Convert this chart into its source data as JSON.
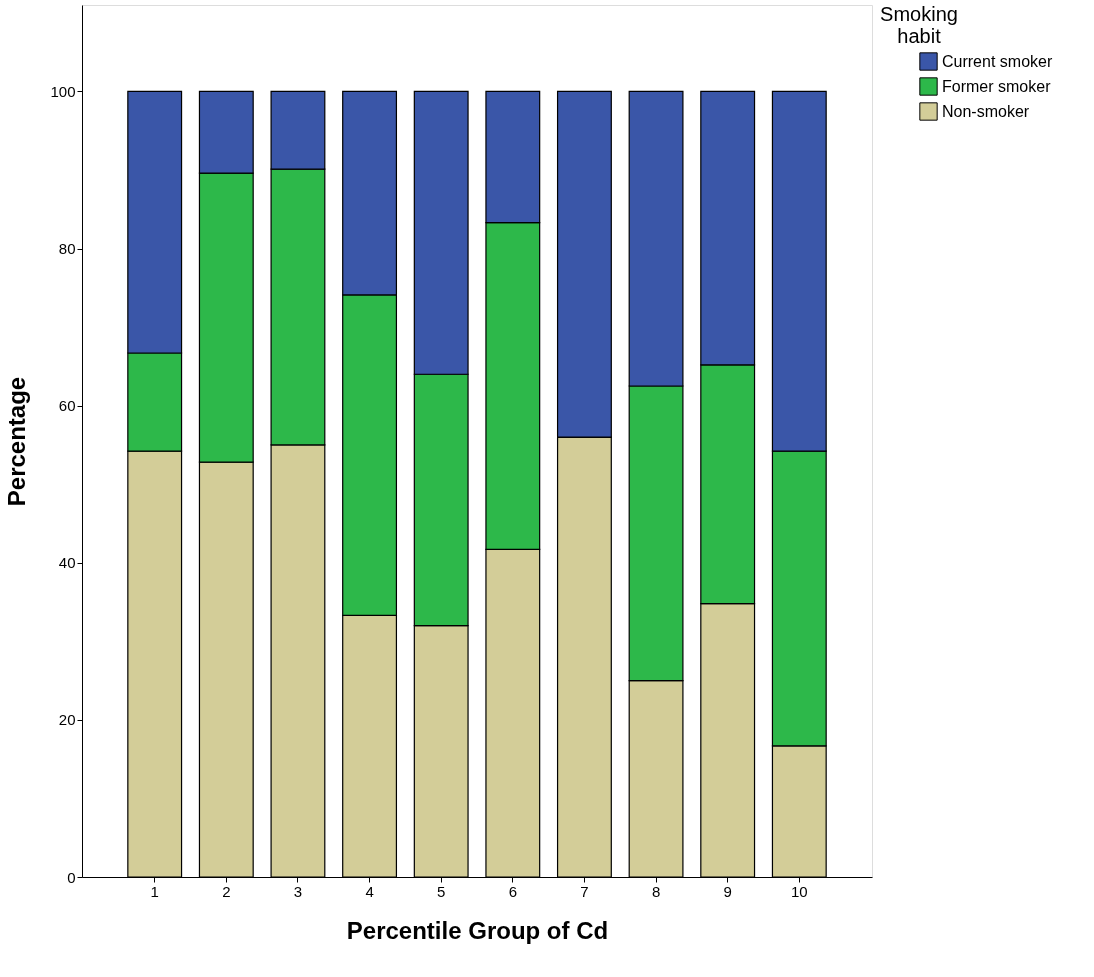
{
  "chart_data": {
    "type": "bar",
    "stacked": true,
    "xlabel": "Percentile Group of Cd",
    "ylabel": "Percentage",
    "legend_title": "Smoking habit",
    "legend": "top right",
    "grid": false,
    "categories": [
      "1",
      "2",
      "3",
      "4",
      "5",
      "6",
      "7",
      "8",
      "9",
      "10"
    ],
    "ylim": [
      0,
      111
    ],
    "yticks": [
      0,
      20,
      40,
      60,
      80,
      100
    ],
    "series": [
      {
        "name": "Non-smoker",
        "color": "#d3cd98",
        "values": [
          54.2,
          52.8,
          55.0,
          33.3,
          32.0,
          41.7,
          56.0,
          25.0,
          34.8,
          16.7
        ]
      },
      {
        "name": "Former smoker",
        "color": "#2db84a",
        "values": [
          12.5,
          36.8,
          35.1,
          40.8,
          32.0,
          41.6,
          0,
          37.5,
          30.4,
          37.5
        ]
      },
      {
        "name": "Current smoker",
        "color": "#3a56a8",
        "values": [
          33.3,
          10.4,
          9.9,
          25.9,
          36.0,
          16.7,
          44.0,
          37.5,
          34.8,
          45.8
        ]
      }
    ]
  }
}
